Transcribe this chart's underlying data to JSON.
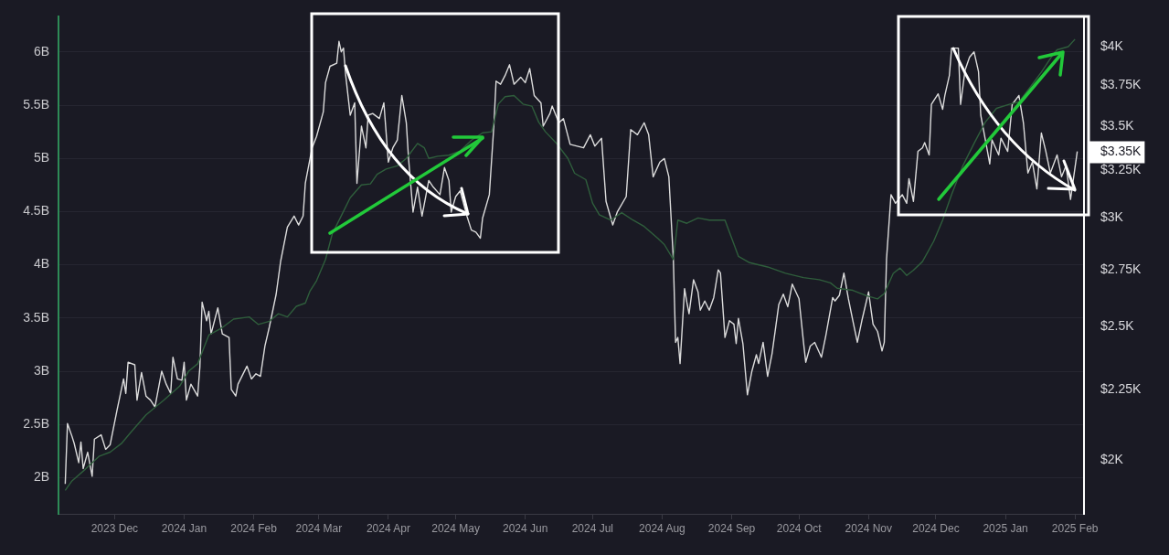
{
  "chart_data": {
    "type": "line",
    "grid": "y",
    "marker": "none",
    "line_style": "solid",
    "legend": false,
    "xlim": [
      "2023-11-06",
      "2025-02-05"
    ],
    "xticks": [
      {
        "value": "2023-12-01",
        "label": "2023 Dec"
      },
      {
        "value": "2024-01-01",
        "label": "2024 Jan"
      },
      {
        "value": "2024-02-01",
        "label": "2024 Feb"
      },
      {
        "value": "2024-03-01",
        "label": "2024 Mar"
      },
      {
        "value": "2024-04-01",
        "label": "2024 Apr"
      },
      {
        "value": "2024-05-01",
        "label": "2024 May"
      },
      {
        "value": "2024-06-01",
        "label": "2024 Jun"
      },
      {
        "value": "2024-07-01",
        "label": "2024 Jul"
      },
      {
        "value": "2024-08-01",
        "label": "2024 Aug"
      },
      {
        "value": "2024-09-01",
        "label": "2024 Sep"
      },
      {
        "value": "2024-10-01",
        "label": "2024 Oct"
      },
      {
        "value": "2024-11-01",
        "label": "2024 Nov"
      },
      {
        "value": "2024-12-01",
        "label": "2024 Dec"
      },
      {
        "value": "2025-01-01",
        "label": "2025 Jan"
      },
      {
        "value": "2025-02-01",
        "label": "2025 Feb"
      }
    ],
    "ylim": [
      1.66,
      6.33
    ],
    "yticks": [
      {
        "value": 2,
        "label": "2B"
      },
      {
        "value": 2.5,
        "label": "2.5B"
      },
      {
        "value": 3,
        "label": "3B"
      },
      {
        "value": 3.5,
        "label": "3.5B"
      },
      {
        "value": 4,
        "label": "4B"
      },
      {
        "value": 4.5,
        "label": "4.5B"
      },
      {
        "value": 5,
        "label": "5B"
      },
      {
        "value": 5.5,
        "label": "5.5B"
      },
      {
        "value": 6,
        "label": "6B"
      }
    ],
    "log": "y2",
    "y2lim": [
      1826,
      4205
    ],
    "y2ticks": [
      {
        "value": 2000,
        "label": "$2K"
      },
      {
        "value": 2250,
        "label": "$2.25K"
      },
      {
        "value": 2500,
        "label": "$2.5K"
      },
      {
        "value": 2750,
        "label": "$2.75K"
      },
      {
        "value": 3000,
        "label": "$3K"
      },
      {
        "value": 3250,
        "label": "$3.25K"
      },
      {
        "value": 3500,
        "label": "$3.5K"
      },
      {
        "value": 3750,
        "label": "$3.75K"
      },
      {
        "value": 4000,
        "label": "$4K"
      },
      {
        "value": 3350,
        "label": "$3.35K"
      }
    ],
    "series": [
      {
        "color": "#2f5e3c",
        "x": [
          "2023-11-09",
          "2023-11-12",
          "2023-11-18",
          "2023-11-24",
          "2023-11-29",
          "2023-12-04",
          "2023-12-08",
          "2023-12-15",
          "2023-12-23",
          "2023-12-30",
          "2024-01-03",
          "2024-01-07",
          "2024-01-12",
          "2024-01-18",
          "2024-01-23",
          "2024-01-30",
          "2024-02-03",
          "2024-02-08",
          "2024-02-12",
          "2024-02-16",
          "2024-02-20",
          "2024-02-24",
          "2024-02-26",
          "2024-02-29",
          "2024-03-04",
          "2024-03-07",
          "2024-03-11",
          "2024-03-15",
          "2024-03-20",
          "2024-03-24",
          "2024-03-27",
          "2024-03-31",
          "2024-04-05",
          "2024-04-09",
          "2024-04-14",
          "2024-04-17",
          "2024-04-19",
          "2024-04-23",
          "2024-04-28",
          "2024-05-03",
          "2024-05-08",
          "2024-05-13",
          "2024-05-17",
          "2024-05-20",
          "2024-05-23",
          "2024-05-27",
          "2024-05-31",
          "2024-06-04",
          "2024-06-07",
          "2024-06-10",
          "2024-06-15",
          "2024-06-20",
          "2024-06-23",
          "2024-06-28",
          "2024-07-01",
          "2024-07-04",
          "2024-07-09",
          "2024-07-14",
          "2024-07-19",
          "2024-07-24",
          "2024-07-30",
          "2024-08-02",
          "2024-08-06",
          "2024-08-08",
          "2024-08-12",
          "2024-08-17",
          "2024-08-22",
          "2024-08-29",
          "2024-09-01",
          "2024-09-04",
          "2024-09-09",
          "2024-09-17",
          "2024-09-25",
          "2024-10-03",
          "2024-10-10",
          "2024-10-15",
          "2024-10-18",
          "2024-10-25",
          "2024-10-31",
          "2024-11-05",
          "2024-11-08",
          "2024-11-12",
          "2024-11-15",
          "2024-11-18",
          "2024-11-21",
          "2024-11-25",
          "2024-11-30",
          "2024-12-04",
          "2024-12-08",
          "2024-12-13",
          "2024-12-18",
          "2024-12-23",
          "2024-12-28",
          "2025-01-03",
          "2025-01-07",
          "2025-01-11",
          "2025-01-17",
          "2025-01-22",
          "2025-01-24",
          "2025-01-29",
          "2025-02-01"
        ],
        "values": [
          1.88,
          1.97,
          2.08,
          2.2,
          2.24,
          2.32,
          2.42,
          2.59,
          2.73,
          2.86,
          3.0,
          3.07,
          3.34,
          3.41,
          3.49,
          3.51,
          3.44,
          3.47,
          3.54,
          3.51,
          3.61,
          3.64,
          3.75,
          3.85,
          4.05,
          4.29,
          4.46,
          4.63,
          4.75,
          4.76,
          4.85,
          4.9,
          4.93,
          5.0,
          5.14,
          5.1,
          5.0,
          5.02,
          5.03,
          5.07,
          5.17,
          5.24,
          5.25,
          5.51,
          5.58,
          5.59,
          5.51,
          5.49,
          5.34,
          5.25,
          5.14,
          5.0,
          4.86,
          4.8,
          4.58,
          4.47,
          4.42,
          4.49,
          4.42,
          4.36,
          4.25,
          4.19,
          4.05,
          4.42,
          4.39,
          4.44,
          4.42,
          4.42,
          4.25,
          4.08,
          4.02,
          3.98,
          3.92,
          3.88,
          3.86,
          3.83,
          3.78,
          3.76,
          3.71,
          3.68,
          3.73,
          3.92,
          3.97,
          3.9,
          3.95,
          4.03,
          4.22,
          4.42,
          4.66,
          4.93,
          5.14,
          5.34,
          5.47,
          5.51,
          5.53,
          5.64,
          5.81,
          5.97,
          6.02,
          6.05,
          6.12
        ]
      },
      {
        "color": "#dcdcdc",
        "axis": "y2",
        "x": [
          "2023-11-09",
          "2023-11-10",
          "2023-11-12",
          "2023-11-13",
          "2023-11-15",
          "2023-11-16",
          "2023-11-17",
          "2023-11-19",
          "2023-11-21",
          "2023-11-22",
          "2023-11-25",
          "2023-11-27",
          "2023-11-29",
          "2023-12-02",
          "2023-12-05",
          "2023-12-06",
          "2023-12-07",
          "2023-12-10",
          "2023-12-11",
          "2023-12-13",
          "2023-12-15",
          "2023-12-17",
          "2023-12-19",
          "2023-12-22",
          "2023-12-24",
          "2023-12-26",
          "2023-12-27",
          "2023-12-29",
          "2023-12-31",
          "2024-01-01",
          "2024-01-02",
          "2024-01-04",
          "2024-01-07",
          "2024-01-08",
          "2024-01-09",
          "2024-01-11",
          "2024-01-12",
          "2024-01-13",
          "2024-01-16",
          "2024-01-18",
          "2024-01-21",
          "2024-01-22",
          "2024-01-24",
          "2024-01-25",
          "2024-01-29",
          "2024-01-31",
          "2024-02-02",
          "2024-02-04",
          "2024-02-06",
          "2024-02-08",
          "2024-02-11",
          "2024-02-13",
          "2024-02-16",
          "2024-02-19",
          "2024-02-21",
          "2024-02-23",
          "2024-02-24",
          "2024-02-27",
          "2024-02-29",
          "2024-03-03",
          "2024-03-04",
          "2024-03-06",
          "2024-03-09",
          "2024-03-10",
          "2024-03-11",
          "2024-03-12",
          "2024-03-13",
          "2024-03-15",
          "2024-03-17",
          "2024-03-18",
          "2024-03-20",
          "2024-03-22",
          "2024-03-23",
          "2024-03-25",
          "2024-03-28",
          "2024-03-30",
          "2024-04-01",
          "2024-04-03",
          "2024-04-05",
          "2024-04-07",
          "2024-04-09",
          "2024-04-10",
          "2024-04-12",
          "2024-04-14",
          "2024-04-16",
          "2024-04-19",
          "2024-04-21",
          "2024-04-24",
          "2024-04-26",
          "2024-04-28",
          "2024-04-29",
          "2024-05-01",
          "2024-05-03",
          "2024-05-06",
          "2024-05-08",
          "2024-05-10",
          "2024-05-12",
          "2024-05-13",
          "2024-05-16",
          "2024-05-18",
          "2024-05-19",
          "2024-05-21",
          "2024-05-23",
          "2024-05-25",
          "2024-05-27",
          "2024-05-30",
          "2024-06-01",
          "2024-06-03",
          "2024-06-05",
          "2024-06-08",
          "2024-06-09",
          "2024-06-12",
          "2024-06-13",
          "2024-06-16",
          "2024-06-18",
          "2024-06-21",
          "2024-06-27",
          "2024-06-30",
          "2024-07-02",
          "2024-07-05",
          "2024-07-07",
          "2024-07-10",
          "2024-07-12",
          "2024-07-16",
          "2024-07-18",
          "2024-07-21",
          "2024-07-24",
          "2024-07-26",
          "2024-07-28",
          "2024-07-31",
          "2024-08-02",
          "2024-08-04",
          "2024-08-06",
          "2024-08-07",
          "2024-08-08",
          "2024-08-09",
          "2024-08-11",
          "2024-08-12",
          "2024-08-13",
          "2024-08-15",
          "2024-08-17",
          "2024-08-18",
          "2024-08-20",
          "2024-08-22",
          "2024-08-24",
          "2024-08-26",
          "2024-08-27",
          "2024-08-29",
          "2024-08-31",
          "2024-09-02",
          "2024-09-03",
          "2024-09-04",
          "2024-09-06",
          "2024-09-08",
          "2024-09-10",
          "2024-09-12",
          "2024-09-13",
          "2024-09-15",
          "2024-09-17",
          "2024-09-19",
          "2024-09-22",
          "2024-09-24",
          "2024-09-26",
          "2024-09-28",
          "2024-10-01",
          "2024-10-03",
          "2024-10-04",
          "2024-10-06",
          "2024-10-08",
          "2024-10-11",
          "2024-10-13",
          "2024-10-16",
          "2024-10-17",
          "2024-10-19",
          "2024-10-21",
          "2024-10-23",
          "2024-10-25",
          "2024-10-27",
          "2024-10-29",
          "2024-11-01",
          "2024-11-03",
          "2024-11-05",
          "2024-11-07",
          "2024-11-08",
          "2024-11-09",
          "2024-11-11",
          "2024-11-13",
          "2024-11-16",
          "2024-11-18",
          "2024-11-19",
          "2024-11-21",
          "2024-11-23",
          "2024-11-25",
          "2024-11-26",
          "2024-11-28",
          "2024-11-29",
          "2024-12-02",
          "2024-12-04",
          "2024-12-05",
          "2024-12-07",
          "2024-12-08",
          "2024-12-11",
          "2024-12-12",
          "2024-12-14",
          "2024-12-16",
          "2024-12-18",
          "2024-12-20",
          "2024-12-21",
          "2024-12-24",
          "2024-12-25",
          "2024-12-26",
          "2024-12-29",
          "2024-12-30",
          "2025-01-02",
          "2025-01-04",
          "2025-01-07",
          "2025-01-09",
          "2025-01-11",
          "2025-01-13",
          "2025-01-15",
          "2025-01-17",
          "2025-01-19",
          "2025-01-21",
          "2025-01-24",
          "2025-01-26",
          "2025-01-28",
          "2025-01-30",
          "2025-02-02"
        ],
        "values": [
          1920,
          2125,
          2080,
          2055,
          1990,
          2060,
          1970,
          2025,
          1945,
          2070,
          2085,
          2035,
          2050,
          2170,
          2290,
          2235,
          2355,
          2345,
          2210,
          2315,
          2225,
          2210,
          2185,
          2320,
          2270,
          2235,
          2375,
          2290,
          2285,
          2355,
          2210,
          2270,
          2225,
          2335,
          2605,
          2525,
          2565,
          2470,
          2580,
          2470,
          2455,
          2250,
          2225,
          2270,
          2340,
          2290,
          2310,
          2300,
          2420,
          2500,
          2640,
          2790,
          2955,
          3010,
          2965,
          3010,
          3180,
          3375,
          3440,
          3585,
          3765,
          3870,
          3890,
          4035,
          3965,
          3990,
          3810,
          3565,
          3640,
          3180,
          3500,
          3375,
          3565,
          3575,
          3545,
          3640,
          3295,
          3375,
          3420,
          3685,
          3520,
          3315,
          3030,
          3160,
          3010,
          3195,
          3160,
          3120,
          3265,
          3195,
          3030,
          3110,
          3140,
          3010,
          2940,
          2930,
          2900,
          3000,
          3120,
          3500,
          3775,
          3755,
          3810,
          3880,
          3755,
          3800,
          3765,
          3855,
          3685,
          3640,
          3500,
          3575,
          3620,
          3520,
          3545,
          3395,
          3375,
          3450,
          3385,
          3430,
          3085,
          2965,
          3030,
          3110,
          3480,
          3450,
          3520,
          3450,
          3215,
          3295,
          3315,
          3215,
          2800,
          2435,
          2455,
          2350,
          2665,
          2605,
          2555,
          2705,
          2650,
          2570,
          2610,
          2570,
          2625,
          2750,
          2735,
          2455,
          2525,
          2510,
          2430,
          2535,
          2430,
          2230,
          2320,
          2385,
          2350,
          2435,
          2300,
          2390,
          2595,
          2640,
          2585,
          2685,
          2620,
          2435,
          2355,
          2420,
          2435,
          2375,
          2465,
          2625,
          2610,
          2635,
          2735,
          2620,
          2525,
          2435,
          2525,
          2650,
          2510,
          2480,
          2400,
          2435,
          2800,
          3120,
          3075,
          3120,
          3075,
          3205,
          3085,
          3355,
          3375,
          3405,
          3335,
          3630,
          3695,
          3600,
          3685,
          3810,
          3990,
          3990,
          3630,
          3845,
          3930,
          3965,
          3835,
          3565,
          3355,
          3285,
          3420,
          3335,
          3430,
          3355,
          3630,
          3685,
          3520,
          3235,
          3295,
          3150,
          3460,
          3355,
          3235,
          3335,
          3215,
          3275,
          3095,
          3355
        ]
      }
    ]
  }
}
